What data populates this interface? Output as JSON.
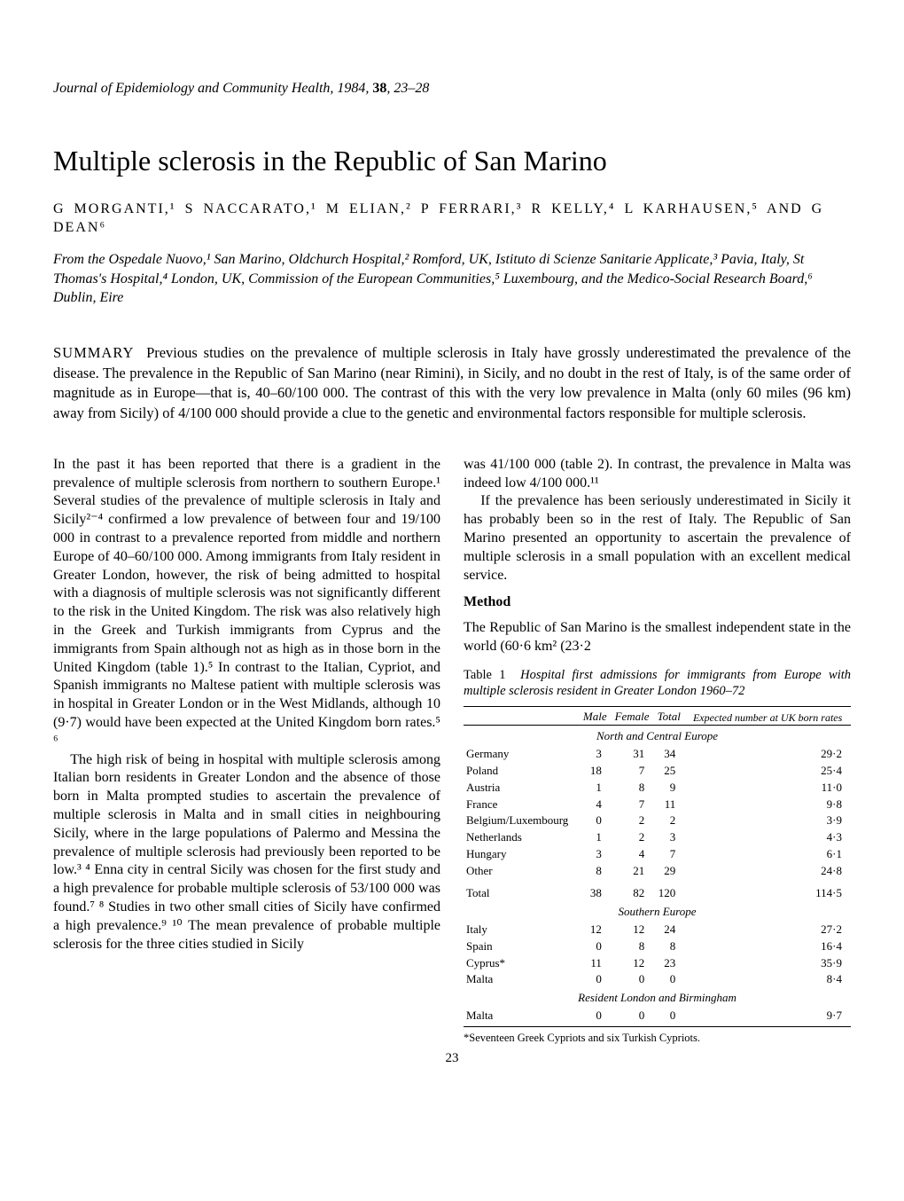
{
  "journal": {
    "name": "Journal of Epidemiology and Community Health",
    "year": "1984",
    "volume": "38",
    "pages": "23–28"
  },
  "title": "Multiple sclerosis in the Republic of San Marino",
  "authors": "G MORGANTI,¹ S NACCARATO,¹ M ELIAN,² P FERRARI,³ R KELLY,⁴ L KARHAUSEN,⁵ AND G DEAN⁶",
  "affiliations": "From the Ospedale Nuovo,¹ San Marino, Oldchurch Hospital,² Romford, UK, Istituto di Scienze Sanitarie Applicate,³ Pavia, Italy, St Thomas's Hospital,⁴ London, UK, Commission of the European Communities,⁵ Luxembourg, and the Medico-Social Research Board,⁶ Dublin, Eire",
  "summary": {
    "label": "SUMMARY",
    "text": "Previous studies on the prevalence of multiple sclerosis in Italy have grossly underestimated the prevalence of the disease. The prevalence in the Republic of San Marino (near Rimini), in Sicily, and no doubt in the rest of Italy, is of the same order of magnitude as in Europe—that is, 40–60/100 000. The contrast of this with the very low prevalence in Malta (only 60 miles (96 km) away from Sicily) of 4/100 000 should provide a clue to the genetic and environmental factors responsible for multiple sclerosis."
  },
  "body": {
    "left_p1": "In the past it has been reported that there is a gradient in the prevalence of multiple sclerosis from northern to southern Europe.¹ Several studies of the prevalence of multiple sclerosis in Italy and Sicily²⁻⁴ confirmed a low prevalence of between four and 19/100 000 in contrast to a prevalence reported from middle and northern Europe of 40–60/100 000. Among immigrants from Italy resident in Greater London, however, the risk of being admitted to hospital with a diagnosis of multiple sclerosis was not significantly different to the risk in the United Kingdom. The risk was also relatively high in the Greek and Turkish immigrants from Cyprus and the immigrants from Spain although not as high as in those born in the United Kingdom (table 1).⁵ In contrast to the Italian, Cypriot, and Spanish immigrants no Maltese patient with multiple sclerosis was in hospital in Greater London or in the West Midlands, although 10 (9·7) would have been expected at the United Kingdom born rates.⁵ ⁶",
    "left_p2": "The high risk of being in hospital with multiple sclerosis among Italian born residents in Greater London and the absence of those born in Malta prompted studies to ascertain the prevalence of multiple sclerosis in Malta and in small cities in neighbouring Sicily, where in the large populations of Palermo and Messina the prevalence of multiple sclerosis had previously been reported to be low.³ ⁴ Enna city in central Sicily was chosen for the first study and a high prevalence for probable multiple sclerosis of 53/100 000 was found.⁷ ⁸ Studies in two other small cities of Sicily have confirmed a high prevalence.⁹ ¹⁰ The mean prevalence of probable multiple sclerosis for the three cities studied in Sicily",
    "right_p1": "was 41/100 000 (table 2). In contrast, the prevalence in Malta was indeed low 4/100 000.¹¹",
    "right_p2": "If the prevalence has been seriously underestimated in Sicily it has probably been so in the rest of Italy. The Republic of San Marino presented an opportunity to ascertain the prevalence of multiple sclerosis in a small population with an excellent medical service.",
    "method_head": "Method",
    "right_p3": "The Republic of San Marino is the smallest independent state in the world (60·6 km² (23·2"
  },
  "table1": {
    "caption_num": "Table 1",
    "caption_text": "Hospital first admissions for immigrants from Europe with multiple sclerosis resident in Greater London 1960–72",
    "headers": [
      "",
      "Male",
      "Female",
      "Total",
      "Expected number at UK born rates"
    ],
    "sections": [
      {
        "title": "North and Central Europe",
        "rows": [
          [
            "Germany",
            "3",
            "31",
            "34",
            "29·2"
          ],
          [
            "Poland",
            "18",
            "7",
            "25",
            "25·4"
          ],
          [
            "Austria",
            "1",
            "8",
            "9",
            "11·0"
          ],
          [
            "France",
            "4",
            "7",
            "11",
            "9·8"
          ],
          [
            "Belgium/Luxembourg",
            "0",
            "2",
            "2",
            "3·9"
          ],
          [
            "Netherlands",
            "1",
            "2",
            "3",
            "4·3"
          ],
          [
            "Hungary",
            "3",
            "4",
            "7",
            "6·1"
          ],
          [
            "Other",
            "8",
            "21",
            "29",
            "24·8"
          ]
        ],
        "total": [
          "Total",
          "38",
          "82",
          "120",
          "114·5"
        ]
      },
      {
        "title": "Southern Europe",
        "rows": [
          [
            "Italy",
            "12",
            "12",
            "24",
            "27·2"
          ],
          [
            "Spain",
            "0",
            "8",
            "8",
            "16·4"
          ],
          [
            "Cyprus*",
            "11",
            "12",
            "23",
            "35·9"
          ],
          [
            "Malta",
            "0",
            "0",
            "0",
            "8·4"
          ]
        ]
      },
      {
        "title": "Resident London and Birmingham",
        "rows": [
          [
            "Malta",
            "0",
            "0",
            "0",
            "9·7"
          ]
        ]
      }
    ],
    "footnote": "*Seventeen Greek Cypriots and six Turkish Cypriots."
  },
  "pagenum": "23"
}
